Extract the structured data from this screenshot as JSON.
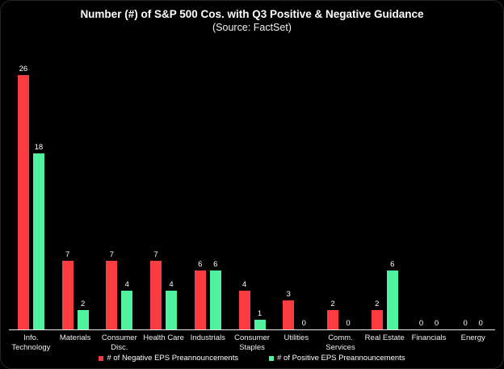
{
  "title": "Number (#) of S&P 500 Cos. with Q3 Positive & Negative Guidance",
  "subtitle": "(Source: FactSet)",
  "colors": {
    "background": "#000000",
    "card_border": "#262626",
    "axis": "#e8e8e8",
    "text": "#ffffff",
    "negative": "#fa3b42",
    "positive": "#50f2a0"
  },
  "legend": [
    {
      "label": "# of Negative EPS Preannouncements",
      "color": "#fa3b42"
    },
    {
      "label": "# of Positive EPS Preannouncements",
      "color": "#50f2a0"
    }
  ],
  "chart_data": {
    "type": "bar",
    "title": "Number (#) of S&P 500 Cos. with Q3 Positive & Negative Guidance",
    "subtitle": "(Source: FactSet)",
    "xlabel": "",
    "ylabel": "",
    "ylim": [
      0,
      26
    ],
    "grid": false,
    "legend_position": "bottom",
    "categories": [
      "Info. Technology",
      "Materials",
      "Consumer Disc.",
      "Health Care",
      "Industrials",
      "Consumer Staples",
      "Utilities",
      "Comm. Services",
      "Real Estate",
      "Financials",
      "Energy"
    ],
    "category_label_lines": [
      [
        "Info.",
        "Technology"
      ],
      [
        "Materials"
      ],
      [
        "Consumer",
        "Disc."
      ],
      [
        "Health Care"
      ],
      [
        "Industrials"
      ],
      [
        "Consumer",
        "Staples"
      ],
      [
        "Utilities"
      ],
      [
        "Comm.",
        "Services"
      ],
      [
        "Real Estate"
      ],
      [
        "Financials"
      ],
      [
        "Energy"
      ]
    ],
    "series": [
      {
        "name": "# of Negative EPS Preannouncements",
        "color": "#fa3b42",
        "values": [
          26,
          7,
          7,
          7,
          6,
          4,
          3,
          2,
          2,
          0,
          0
        ]
      },
      {
        "name": "# of Positive EPS Preannouncements",
        "color": "#50f2a0",
        "values": [
          18,
          2,
          4,
          4,
          6,
          1,
          0,
          0,
          6,
          0,
          0
        ]
      }
    ]
  }
}
